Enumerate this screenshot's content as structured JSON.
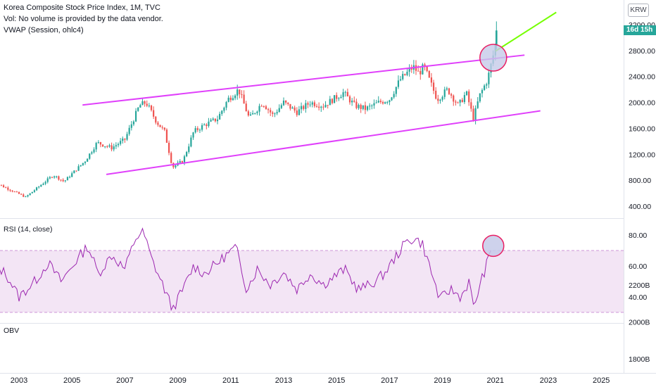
{
  "header": {
    "title": "Korea Composite Stock Price Index, 1M, TVC",
    "vol_note": "Vol: No volume is provided by the data vendor.",
    "vwap": "VWAP (Session, ohlc4)"
  },
  "badges": {
    "currency": "KRW",
    "countdown": "16d 15h"
  },
  "colors": {
    "up": "#26a69a",
    "down": "#ef5350",
    "channel": "#e040fb",
    "projection": "#76ff03",
    "rsi_line": "#9c27b0",
    "rsi_band": "#f3e5f5",
    "marker_fill": "#c5cae9",
    "marker_stroke": "#e91e63"
  },
  "chart_data": [
    {
      "type": "candlestick",
      "title": "Korea Composite Stock Price Index, 1M, TVC",
      "ylim": [
        300,
        3400
      ],
      "y_ticks": [
        "400.00",
        "800.00",
        "1200.00",
        "1600.00",
        "2000.00",
        "2400.00",
        "2800.00",
        "3200.00"
      ],
      "x_ticks": [
        "2003",
        "2005",
        "2007",
        "2009",
        "2011",
        "2013",
        "2015",
        "2017",
        "2019",
        "2021",
        "2023",
        "2025"
      ],
      "close_anchors": [
        [
          "2002.00",
          780
        ],
        [
          "2003.25",
          540
        ],
        [
          "2004.30",
          880
        ],
        [
          "2004.70",
          780
        ],
        [
          "2005.50",
          1100
        ],
        [
          "2005.95",
          1380
        ],
        [
          "2006.50",
          1300
        ],
        [
          "2007.00",
          1430
        ],
        [
          "2007.55",
          1950
        ],
        [
          "2007.80",
          2000
        ],
        [
          "2008.20",
          1700
        ],
        [
          "2008.50",
          1550
        ],
        [
          "2008.80",
          1000
        ],
        [
          "2009.20",
          1100
        ],
        [
          "2009.60",
          1550
        ],
        [
          "2010.00",
          1650
        ],
        [
          "2010.50",
          1750
        ],
        [
          "2010.90",
          2050
        ],
        [
          "2011.30",
          2200
        ],
        [
          "2011.70",
          1750
        ],
        [
          "2012.20",
          2000
        ],
        [
          "2012.60",
          1800
        ],
        [
          "2013.00",
          2000
        ],
        [
          "2013.50",
          1850
        ],
        [
          "2014.00",
          2000
        ],
        [
          "2014.50",
          1950
        ],
        [
          "2015.25",
          2150
        ],
        [
          "2015.70",
          1950
        ],
        [
          "2016.10",
          1900
        ],
        [
          "2016.60",
          2000
        ],
        [
          "2017.00",
          2050
        ],
        [
          "2017.40",
          2350
        ],
        [
          "2017.90",
          2550
        ],
        [
          "2018.10",
          2450
        ],
        [
          "2018.30",
          2550
        ],
        [
          "2018.80",
          2050
        ],
        [
          "2019.20",
          2200
        ],
        [
          "2019.60",
          1950
        ],
        [
          "2019.90",
          2150
        ],
        [
          "2020.17",
          1750
        ],
        [
          "2020.40",
          2100
        ],
        [
          "2020.70",
          2350
        ],
        [
          "2020.85",
          2600
        ],
        [
          "2021.00",
          2880
        ]
      ],
      "last_candle": {
        "x": "2021.04",
        "open": 2870,
        "high": 3250,
        "low": 2820,
        "close": 3110
      },
      "channel_upper": {
        "from": [
          "2005.4",
          1960
        ],
        "to": [
          "2022.1",
          2730
        ]
      },
      "channel_lower": {
        "from": [
          "2006.3",
          890
        ],
        "to": [
          "2022.7",
          1870
        ]
      },
      "projection": {
        "from": [
          "2021.0",
          2790
        ],
        "to": [
          "2023.3",
          3390
        ]
      },
      "marker": {
        "x": "2020.92",
        "y": 2690
      }
    },
    {
      "type": "line",
      "title": "RSI (14, close)",
      "ylim": [
        25,
        87
      ],
      "y_ticks": [
        "40.00",
        "60.00",
        "80.00"
      ],
      "band": [
        30,
        70
      ],
      "anchors": [
        [
          "2002.00",
          62
        ],
        [
          "2002.50",
          55
        ],
        [
          "2003.00",
          40
        ],
        [
          "2003.60",
          50
        ],
        [
          "2004.10",
          62
        ],
        [
          "2004.60",
          50
        ],
        [
          "2005.10",
          62
        ],
        [
          "2005.60",
          73
        ],
        [
          "2006.00",
          55
        ],
        [
          "2006.50",
          67
        ],
        [
          "2007.00",
          58
        ],
        [
          "2007.40",
          78
        ],
        [
          "2007.70",
          82
        ],
        [
          "2008.00",
          65
        ],
        [
          "2008.50",
          45
        ],
        [
          "2008.80",
          32
        ],
        [
          "2009.20",
          45
        ],
        [
          "2009.60",
          60
        ],
        [
          "2010.00",
          55
        ],
        [
          "2010.50",
          62
        ],
        [
          "2010.90",
          68
        ],
        [
          "2011.20",
          72
        ],
        [
          "2011.60",
          45
        ],
        [
          "2012.00",
          58
        ],
        [
          "2012.50",
          48
        ],
        [
          "2013.00",
          56
        ],
        [
          "2013.50",
          45
        ],
        [
          "2014.00",
          55
        ],
        [
          "2014.50",
          48
        ],
        [
          "2015.30",
          58
        ],
        [
          "2015.80",
          45
        ],
        [
          "2016.30",
          48
        ],
        [
          "2016.80",
          55
        ],
        [
          "2017.20",
          65
        ],
        [
          "2017.60",
          75
        ],
        [
          "2017.95",
          78
        ],
        [
          "2018.25",
          74
        ],
        [
          "2018.60",
          55
        ],
        [
          "2018.90",
          38
        ],
        [
          "2019.30",
          45
        ],
        [
          "2019.70",
          40
        ],
        [
          "2020.00",
          50
        ],
        [
          "2020.17",
          33
        ],
        [
          "2020.50",
          52
        ],
        [
          "2020.90",
          73
        ]
      ],
      "marker": {
        "x": "2020.92",
        "y": 73
      }
    },
    {
      "type": "line",
      "title": "OBV",
      "y_ticks": [
        "1800B",
        "2000B",
        "2200B"
      ]
    }
  ]
}
